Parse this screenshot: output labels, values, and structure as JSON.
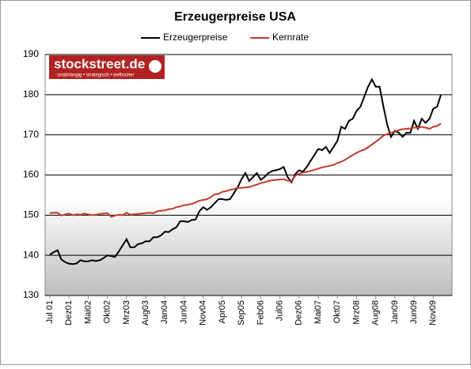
{
  "chart_data": {
    "type": "line",
    "title": "Erzeugerpreise USA",
    "categories": [
      "Jul 01",
      null,
      null,
      null,
      null,
      "Dez01",
      null,
      null,
      null,
      null,
      "Mai02",
      null,
      null,
      null,
      null,
      "Okt02",
      null,
      null,
      null,
      null,
      "Mrz03",
      null,
      null,
      null,
      null,
      "Aug03",
      null,
      null,
      null,
      null,
      "Jan04",
      null,
      null,
      null,
      null,
      "Jun04",
      null,
      null,
      null,
      null,
      "Nov04",
      null,
      null,
      null,
      null,
      "Apr05",
      null,
      null,
      null,
      null,
      "Sep05",
      null,
      null,
      null,
      null,
      "Feb06",
      null,
      null,
      null,
      null,
      "Jul06",
      null,
      null,
      null,
      null,
      "Dez06",
      null,
      null,
      null,
      null,
      "Mai07",
      null,
      null,
      null,
      null,
      "Okt07",
      null,
      null,
      null,
      null,
      "Mrz08",
      null,
      null,
      null,
      null,
      "Aug08",
      null,
      null,
      null,
      null,
      "Jan09",
      null,
      null,
      null,
      null,
      "Jun09",
      null,
      null,
      null,
      null,
      "Nov09",
      null,
      null
    ],
    "series": [
      {
        "name": "Erzeugerpreise",
        "color": "#000000",
        "values": [
          140.2,
          140.8,
          141.3,
          139.0,
          138.3,
          137.9,
          137.8,
          138.0,
          138.8,
          138.5,
          138.5,
          138.8,
          138.6,
          138.8,
          139.3,
          140.0,
          139.8,
          139.6,
          141.0,
          142.5,
          144.0,
          142.0,
          142.0,
          142.8,
          143.0,
          143.5,
          143.5,
          144.5,
          144.5,
          145.0,
          145.9,
          145.8,
          146.5,
          147.0,
          148.5,
          148.5,
          148.3,
          148.8,
          148.9,
          151.0,
          152.0,
          151.3,
          152.0,
          153.0,
          154.0,
          154.0,
          153.8,
          154.0,
          155.5,
          157.0,
          159.0,
          160.5,
          158.5,
          159.5,
          160.5,
          158.8,
          159.5,
          160.5,
          161.0,
          161.2,
          161.5,
          162.0,
          159.5,
          158.2,
          160.2,
          161.2,
          160.8,
          162.0,
          163.5,
          165.0,
          166.5,
          166.2,
          167.0,
          165.5,
          167.0,
          168.5,
          172.0,
          171.5,
          173.5,
          174.0,
          176.0,
          177.0,
          179.5,
          182.0,
          183.8,
          182.0,
          182.0,
          177.0,
          172.5,
          169.5,
          171.0,
          170.5,
          169.5,
          170.5,
          170.5,
          173.5,
          171.5,
          174.0,
          173.0,
          174.0,
          176.5,
          177.0,
          180.0
        ]
      },
      {
        "name": "Kernrate",
        "color": "#c0392b",
        "values": [
          150.5,
          150.6,
          150.6,
          149.9,
          150.2,
          150.4,
          150.0,
          150.2,
          150.1,
          150.4,
          150.2,
          150.0,
          150.1,
          150.3,
          150.4,
          150.5,
          149.6,
          149.9,
          150.1,
          150.0,
          150.6,
          150.1,
          150.2,
          150.3,
          150.4,
          150.5,
          150.6,
          150.5,
          151.0,
          151.1,
          151.2,
          151.5,
          151.6,
          152.0,
          152.2,
          152.5,
          152.6,
          152.8,
          153.2,
          153.6,
          153.8,
          154.0,
          154.5,
          155.2,
          155.3,
          155.8,
          156.0,
          156.3,
          156.5,
          156.8,
          156.8,
          156.9,
          157.0,
          157.3,
          157.6,
          158.0,
          158.2,
          158.5,
          158.7,
          158.8,
          158.9,
          159.0,
          158.6,
          158.5,
          159.8,
          160.3,
          160.6,
          160.8,
          161.0,
          161.3,
          161.6,
          161.9,
          162.1,
          162.3,
          162.5,
          163.0,
          163.3,
          163.8,
          164.4,
          165.0,
          165.5,
          166.0,
          166.3,
          166.9,
          167.6,
          168.3,
          169.0,
          169.8,
          170.2,
          170.5,
          170.8,
          171.2,
          171.4,
          171.5,
          171.6,
          171.8,
          171.8,
          172.0,
          171.8,
          171.5,
          172.0,
          172.2,
          172.8
        ]
      }
    ],
    "ylim": [
      130,
      190
    ],
    "yticks": [
      130,
      140,
      150,
      160,
      170,
      180,
      190
    ],
    "grid": true,
    "legend": "top"
  },
  "logo": {
    "name": "stockstreet.de",
    "tagline": "unabhängig • strategisch • treffsicher"
  }
}
